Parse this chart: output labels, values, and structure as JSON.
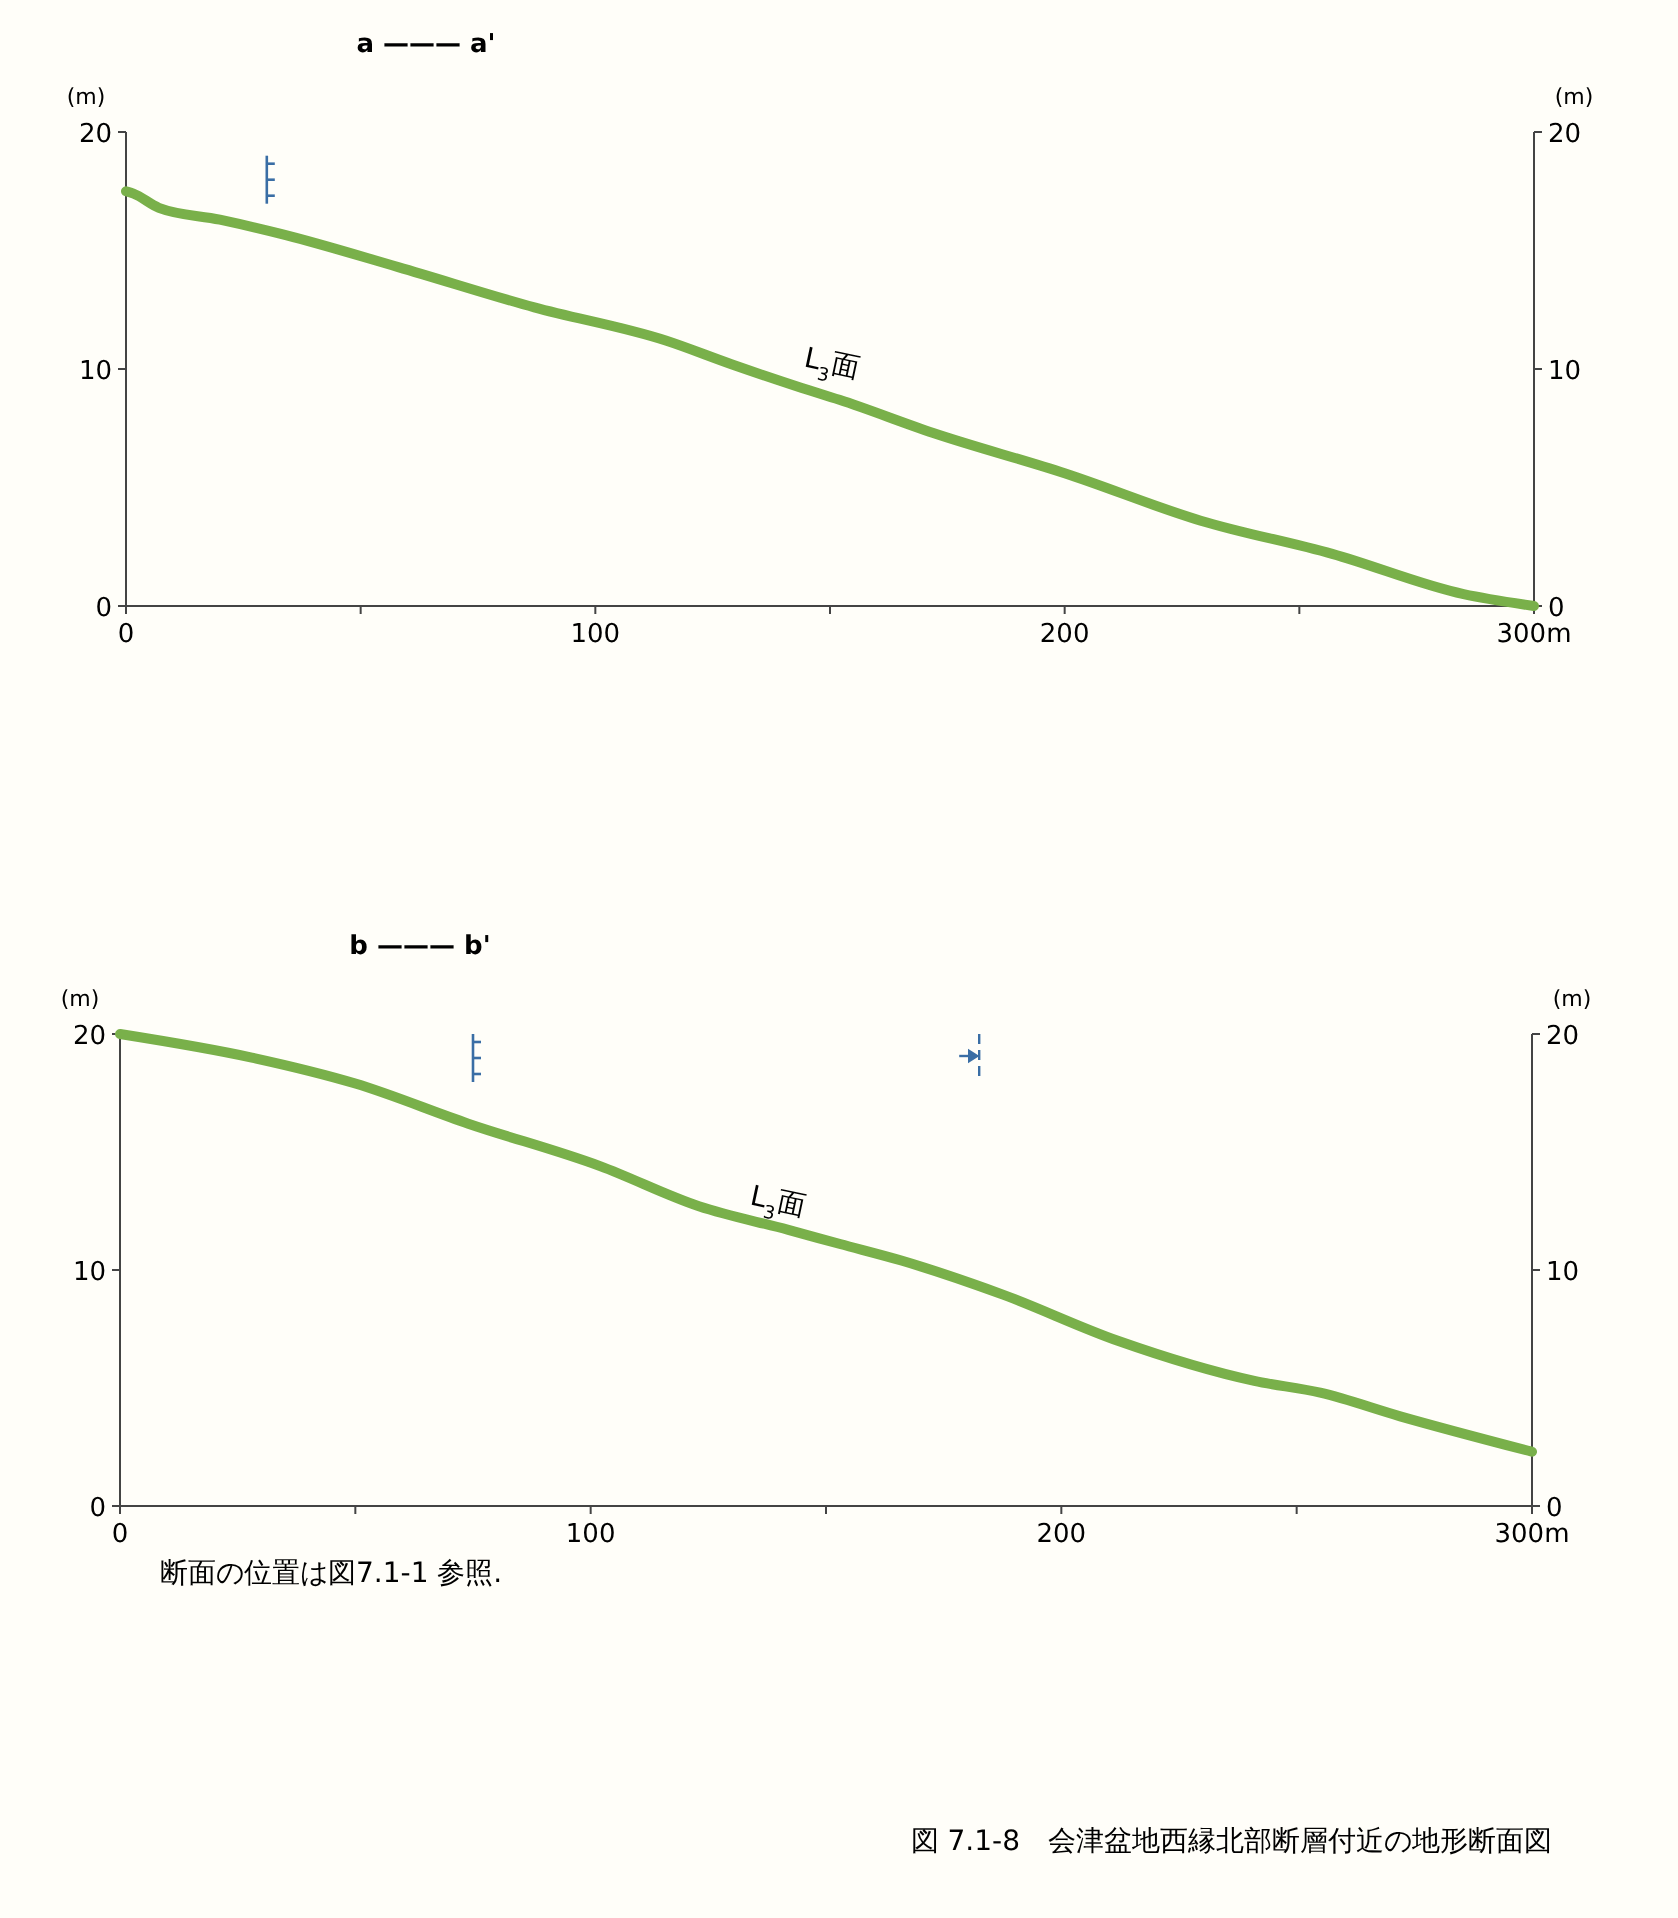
{
  "chart_data": [
    {
      "type": "line",
      "title": "a ——— a'",
      "ylabel": "(m)",
      "y2label": "(m)",
      "xlim": [
        0,
        300
      ],
      "xticks": [
        0,
        {
          "value": 50,
          "label": null
        },
        100,
        {
          "value": 150,
          "label": null
        },
        200,
        {
          "value": 250,
          "label": null
        },
        {
          "value": 300,
          "label": "300m"
        }
      ],
      "ylim": [
        0,
        20
      ],
      "yticks": [
        0,
        10,
        20
      ],
      "y2lim": [
        0,
        20
      ],
      "y2ticks": [
        0,
        10,
        20
      ],
      "marker": "none",
      "line_style": "solid",
      "series": [
        {
          "color": "#79b04a",
          "x": [
            0,
            1.6,
            7,
            20,
            33,
            58,
            87,
            115,
            129,
            144,
            152,
            172,
            200,
            229,
            257,
            285,
            300
          ],
          "values": [
            17.5,
            17.4,
            16.8,
            16.3,
            15.7,
            14.3,
            12.6,
            11.2,
            10.2,
            9.2,
            8.7,
            7.3,
            5.6,
            3.6,
            2.2,
            0.5,
            0
          ]
        }
      ],
      "annotations": [
        "L$_{3}$面"
      ]
    },
    {
      "type": "line",
      "title": "b ——— b'",
      "ylabel": "(m)",
      "y2label": "(m)",
      "xlim": [
        0,
        300
      ],
      "xticks": [
        0,
        {
          "value": 50,
          "label": null
        },
        100,
        {
          "value": 150,
          "label": null
        },
        200,
        {
          "value": 250,
          "label": null
        },
        {
          "value": 300,
          "label": "300m"
        }
      ],
      "ylim": [
        0,
        20
      ],
      "yticks": [
        0,
        10,
        20
      ],
      "y2lim": [
        0,
        20
      ],
      "y2ticks": [
        0,
        10,
        20
      ],
      "marker": "none",
      "line_style": "solid",
      "series": [
        {
          "color": "#79b04a",
          "x": [
            0,
            28,
            50,
            74,
            102,
            123,
            142,
            153,
            166,
            187,
            212,
            241,
            255,
            272,
            300
          ],
          "values": [
            20,
            19,
            17.9,
            16.2,
            14.4,
            12.7,
            11.7,
            11.1,
            10.4,
            9,
            7,
            5.3,
            4.8,
            3.8,
            2.3
          ]
        }
      ],
      "annotations": [
        "L$_{3}$面",
        "断面の位置は図7.1-1 参照.",
        "図 7.1-8　会津盆地西縁北部断層付近の地形断面図"
      ]
    }
  ]
}
